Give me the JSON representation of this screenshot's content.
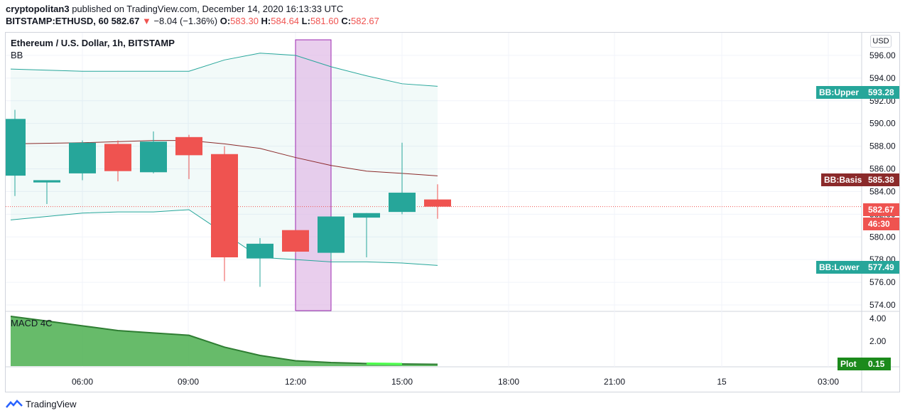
{
  "header": {
    "author": "cryptopolitan3",
    "published_text": "published on TradingView.com, December 14, 2020 16:13:33 UTC",
    "symbol_line": "BITSTAMP:ETHUSD, 60",
    "last": "582.67",
    "change_arrow": "▼",
    "change": "−8.04 (−1.36%)",
    "o_label": "O:",
    "o_value": "583.30",
    "h_label": "H:",
    "h_value": "584.64",
    "l_label": "L:",
    "l_value": "581.60",
    "c_label": "C:",
    "c_value": "582.67"
  },
  "chart_title": "Ethereum / U.S. Dollar, 1h, BITSTAMP",
  "bb_label": "BB",
  "macd_label": "MACD 4C",
  "currency_button": "USD",
  "footer_brand": "TradingView",
  "colors": {
    "up": "#26a69a",
    "down": "#ef5350",
    "bb_upper": "#26a69a",
    "bb_lower": "#26a69a",
    "bb_basis": "#8b2a2a",
    "macd_fill": "#4caf50",
    "macd_bright": "#4cff4c",
    "highlight": "#e1bee7",
    "highlight_border": "#9c27b0"
  },
  "price_axis": [
    "596.00",
    "594.00",
    "592.00",
    "590.00",
    "588.00",
    "586.00",
    "584.00",
    "582.00",
    "580.00",
    "578.00",
    "576.00",
    "574.00"
  ],
  "macd_axis": [
    "4.00",
    "2.00"
  ],
  "time_axis": [
    "06:00",
    "09:00",
    "12:00",
    "15:00",
    "18:00",
    "21:00",
    "15",
    "03:00"
  ],
  "badges": {
    "bb_upper_label": "BB:Upper",
    "bb_upper_value": "593.28",
    "bb_basis_label": "BB:Basis",
    "bb_basis_value": "585.38",
    "last_price": "582.67",
    "countdown": "46:30",
    "bb_lower_label": "BB:Lower",
    "bb_lower_value": "577.49",
    "plot_label": "Plot",
    "plot_value": "0.15"
  },
  "chart_data": {
    "type": "candlestick",
    "candles": [
      {
        "o": 585.4,
        "h": 591.2,
        "l": 583.6,
        "c": 590.4
      },
      {
        "o": 584.8,
        "h": 585.0,
        "l": 582.9,
        "c": 585.0
      },
      {
        "o": 585.6,
        "h": 588.5,
        "l": 585.0,
        "c": 588.3
      },
      {
        "o": 588.2,
        "h": 588.5,
        "l": 584.9,
        "c": 585.8
      },
      {
        "o": 585.7,
        "h": 589.3,
        "l": 585.6,
        "c": 588.4
      },
      {
        "o": 588.8,
        "h": 589.0,
        "l": 585.1,
        "c": 587.2
      },
      {
        "o": 587.3,
        "h": 588.0,
        "l": 576.1,
        "c": 578.2
      },
      {
        "o": 578.1,
        "h": 579.9,
        "l": 575.6,
        "c": 579.4
      },
      {
        "o": 580.6,
        "h": 580.6,
        "l": 578.6,
        "c": 578.7
      },
      {
        "o": 578.6,
        "h": 581.8,
        "l": 578.0,
        "c": 581.8
      },
      {
        "o": 581.7,
        "h": 582.1,
        "l": 578.2,
        "c": 582.1
      },
      {
        "o": 582.2,
        "h": 588.3,
        "l": 582.0,
        "c": 583.9
      },
      {
        "o": 583.3,
        "h": 584.64,
        "l": 581.6,
        "c": 582.67
      }
    ],
    "bb_upper": [
      594.8,
      594.6,
      594.6,
      594.6,
      594.6,
      595.6,
      596.2,
      596.0,
      595.0,
      594.2,
      593.5,
      593.28
    ],
    "bb_basis": [
      588.2,
      588.3,
      588.4,
      588.5,
      588.5,
      588.2,
      587.8,
      587.0,
      586.3,
      585.8,
      585.6,
      585.38
    ],
    "bb_lower": [
      581.5,
      582.1,
      582.2,
      582.2,
      582.4,
      580.3,
      578.2,
      578.0,
      577.8,
      577.8,
      577.7,
      577.49
    ],
    "macd": [
      4.2,
      3.8,
      3.4,
      3.0,
      2.8,
      2.6,
      1.6,
      0.9,
      0.45,
      0.3,
      0.22,
      0.18,
      0.15
    ],
    "price_range": [
      573.5,
      598
    ],
    "macd_range": [
      0,
      4.5
    ],
    "highlight_candle_index": 8
  }
}
